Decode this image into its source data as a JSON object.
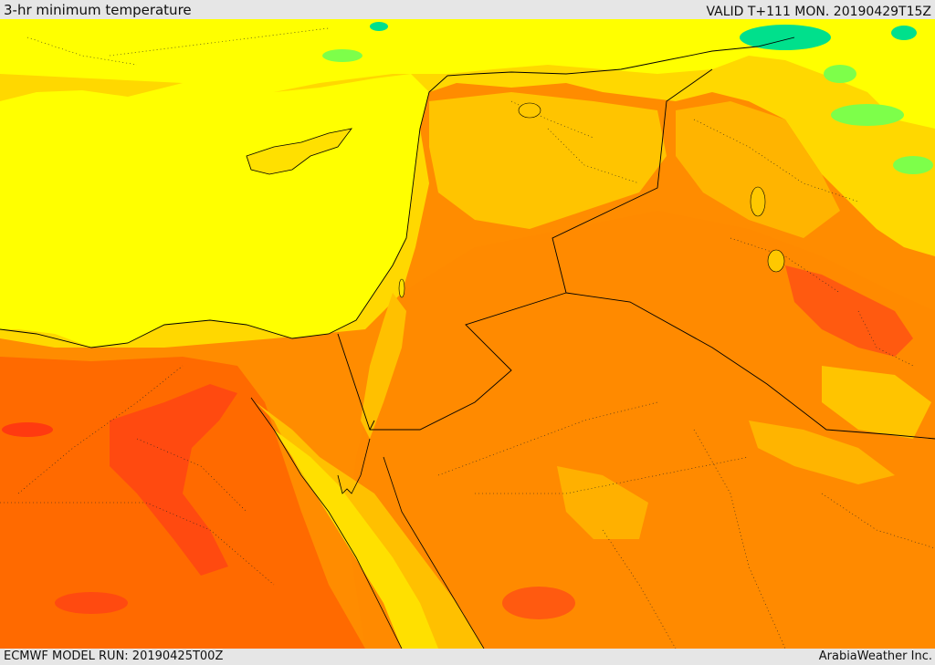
{
  "header": {
    "title": "3-hr minimum temperature",
    "valid": "VALID T+111 MON. 20190429T15Z"
  },
  "footer": {
    "model_run": "ECMWF MODEL RUN: 20190425T00Z",
    "brand": "ArabiaWeather Inc."
  },
  "palette": {
    "sea_yellow": "#ffff00",
    "light_yellow": "#ffe600",
    "amber": "#ffc800",
    "orange": "#ff8c00",
    "dark_orange": "#ff6a00",
    "red_orange": "#ff4a10",
    "green": "#7dff4a",
    "cyan_green": "#00e08c",
    "border_line": "#000000"
  }
}
